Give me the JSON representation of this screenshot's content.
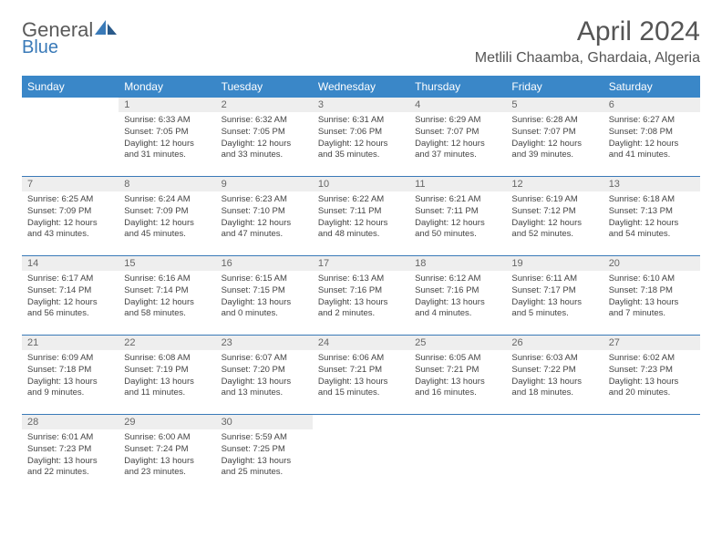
{
  "logo": {
    "text1": "General",
    "text2": "Blue"
  },
  "title": "April 2024",
  "location": "Metlili Chaamba, Ghardaia, Algeria",
  "dayHeaders": [
    "Sunday",
    "Monday",
    "Tuesday",
    "Wednesday",
    "Thursday",
    "Friday",
    "Saturday"
  ],
  "colors": {
    "headerBg": "#3a87c8",
    "headerText": "#ffffff",
    "border": "#3a7ab8",
    "daynumBg": "#eeeeee",
    "daynumText": "#666666",
    "bodyText": "#444444",
    "logoGray": "#5a5a5a",
    "logoBlue": "#3a7ab8"
  },
  "startDayOfWeek": 1,
  "daysInMonth": 30,
  "days": [
    {
      "n": 1,
      "sunrise": "6:33 AM",
      "sunset": "7:05 PM",
      "daylight": "12 hours and 31 minutes."
    },
    {
      "n": 2,
      "sunrise": "6:32 AM",
      "sunset": "7:05 PM",
      "daylight": "12 hours and 33 minutes."
    },
    {
      "n": 3,
      "sunrise": "6:31 AM",
      "sunset": "7:06 PM",
      "daylight": "12 hours and 35 minutes."
    },
    {
      "n": 4,
      "sunrise": "6:29 AM",
      "sunset": "7:07 PM",
      "daylight": "12 hours and 37 minutes."
    },
    {
      "n": 5,
      "sunrise": "6:28 AM",
      "sunset": "7:07 PM",
      "daylight": "12 hours and 39 minutes."
    },
    {
      "n": 6,
      "sunrise": "6:27 AM",
      "sunset": "7:08 PM",
      "daylight": "12 hours and 41 minutes."
    },
    {
      "n": 7,
      "sunrise": "6:25 AM",
      "sunset": "7:09 PM",
      "daylight": "12 hours and 43 minutes."
    },
    {
      "n": 8,
      "sunrise": "6:24 AM",
      "sunset": "7:09 PM",
      "daylight": "12 hours and 45 minutes."
    },
    {
      "n": 9,
      "sunrise": "6:23 AM",
      "sunset": "7:10 PM",
      "daylight": "12 hours and 47 minutes."
    },
    {
      "n": 10,
      "sunrise": "6:22 AM",
      "sunset": "7:11 PM",
      "daylight": "12 hours and 48 minutes."
    },
    {
      "n": 11,
      "sunrise": "6:21 AM",
      "sunset": "7:11 PM",
      "daylight": "12 hours and 50 minutes."
    },
    {
      "n": 12,
      "sunrise": "6:19 AM",
      "sunset": "7:12 PM",
      "daylight": "12 hours and 52 minutes."
    },
    {
      "n": 13,
      "sunrise": "6:18 AM",
      "sunset": "7:13 PM",
      "daylight": "12 hours and 54 minutes."
    },
    {
      "n": 14,
      "sunrise": "6:17 AM",
      "sunset": "7:14 PM",
      "daylight": "12 hours and 56 minutes."
    },
    {
      "n": 15,
      "sunrise": "6:16 AM",
      "sunset": "7:14 PM",
      "daylight": "12 hours and 58 minutes."
    },
    {
      "n": 16,
      "sunrise": "6:15 AM",
      "sunset": "7:15 PM",
      "daylight": "13 hours and 0 minutes."
    },
    {
      "n": 17,
      "sunrise": "6:13 AM",
      "sunset": "7:16 PM",
      "daylight": "13 hours and 2 minutes."
    },
    {
      "n": 18,
      "sunrise": "6:12 AM",
      "sunset": "7:16 PM",
      "daylight": "13 hours and 4 minutes."
    },
    {
      "n": 19,
      "sunrise": "6:11 AM",
      "sunset": "7:17 PM",
      "daylight": "13 hours and 5 minutes."
    },
    {
      "n": 20,
      "sunrise": "6:10 AM",
      "sunset": "7:18 PM",
      "daylight": "13 hours and 7 minutes."
    },
    {
      "n": 21,
      "sunrise": "6:09 AM",
      "sunset": "7:18 PM",
      "daylight": "13 hours and 9 minutes."
    },
    {
      "n": 22,
      "sunrise": "6:08 AM",
      "sunset": "7:19 PM",
      "daylight": "13 hours and 11 minutes."
    },
    {
      "n": 23,
      "sunrise": "6:07 AM",
      "sunset": "7:20 PM",
      "daylight": "13 hours and 13 minutes."
    },
    {
      "n": 24,
      "sunrise": "6:06 AM",
      "sunset": "7:21 PM",
      "daylight": "13 hours and 15 minutes."
    },
    {
      "n": 25,
      "sunrise": "6:05 AM",
      "sunset": "7:21 PM",
      "daylight": "13 hours and 16 minutes."
    },
    {
      "n": 26,
      "sunrise": "6:03 AM",
      "sunset": "7:22 PM",
      "daylight": "13 hours and 18 minutes."
    },
    {
      "n": 27,
      "sunrise": "6:02 AM",
      "sunset": "7:23 PM",
      "daylight": "13 hours and 20 minutes."
    },
    {
      "n": 28,
      "sunrise": "6:01 AM",
      "sunset": "7:23 PM",
      "daylight": "13 hours and 22 minutes."
    },
    {
      "n": 29,
      "sunrise": "6:00 AM",
      "sunset": "7:24 PM",
      "daylight": "13 hours and 23 minutes."
    },
    {
      "n": 30,
      "sunrise": "5:59 AM",
      "sunset": "7:25 PM",
      "daylight": "13 hours and 25 minutes."
    }
  ],
  "labels": {
    "sunrise": "Sunrise:",
    "sunset": "Sunset:",
    "daylight": "Daylight:"
  }
}
